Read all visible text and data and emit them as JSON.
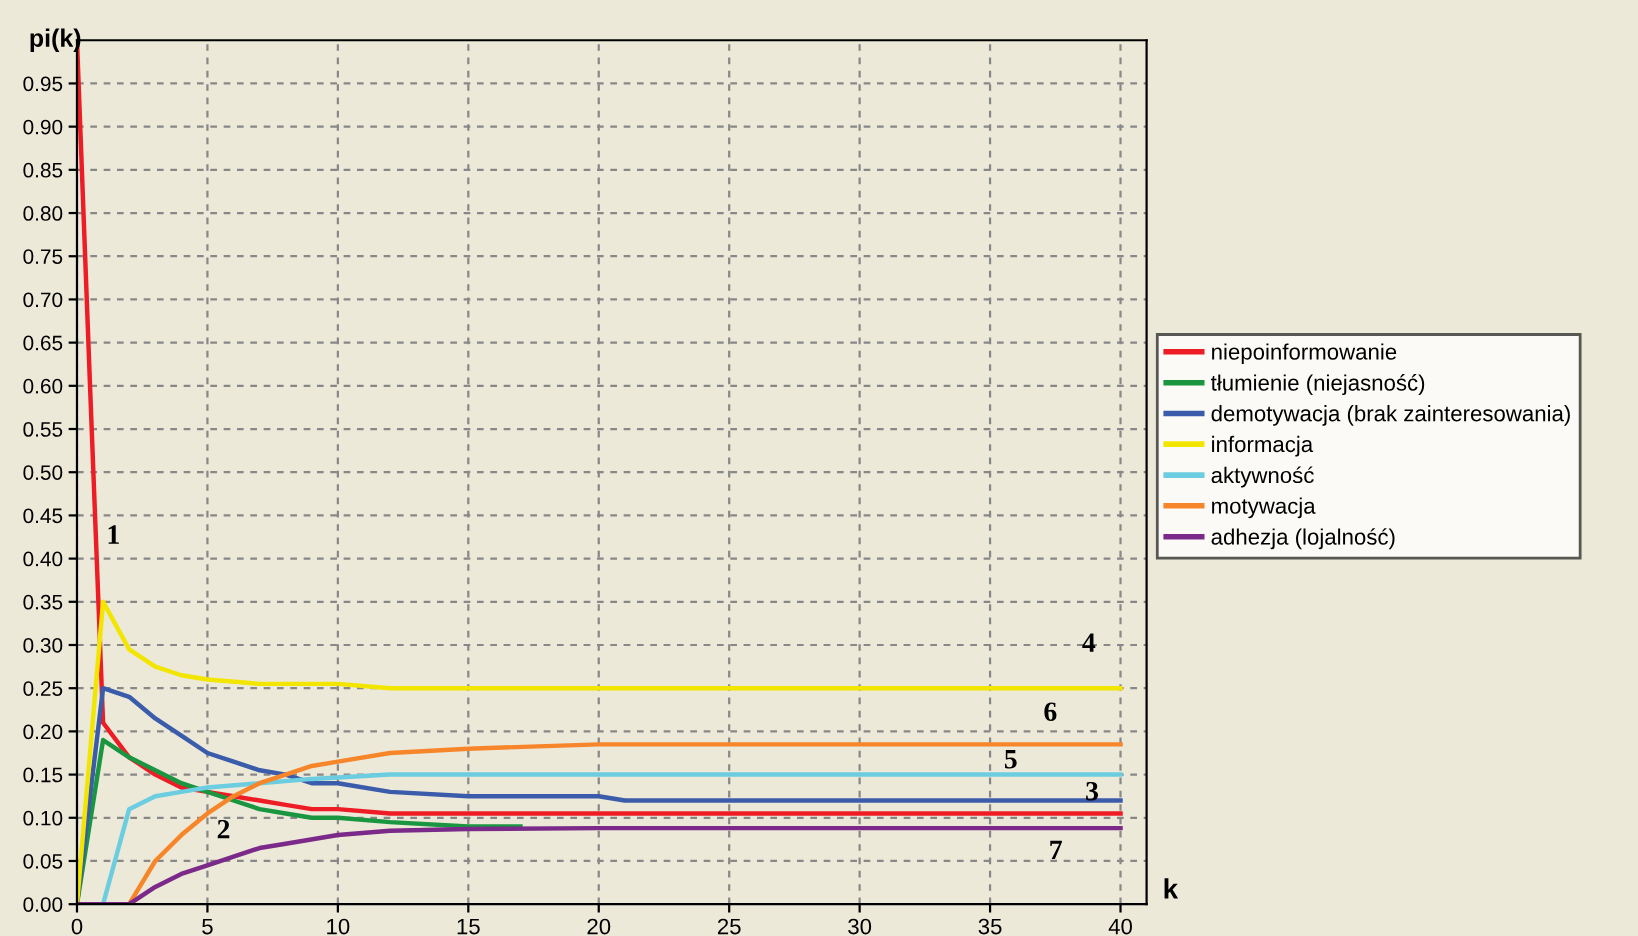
{
  "chart_data": {
    "type": "line",
    "xlabel": "k",
    "ylabel": "pi(k)",
    "xlim": [
      0,
      41
    ],
    "ylim": [
      0,
      1.0
    ],
    "xticks": [
      0,
      5,
      10,
      15,
      20,
      25,
      30,
      35,
      40
    ],
    "yticks": [
      {
        "value": 0,
        "label": "0.00"
      },
      {
        "value": 0.05,
        "label": "0.05"
      },
      {
        "value": 0.1,
        "label": "0.10"
      },
      {
        "value": 0.15,
        "label": "0.15"
      },
      {
        "value": 0.2,
        "label": "0.20"
      },
      {
        "value": 0.25,
        "label": "0.25"
      },
      {
        "value": 0.3,
        "label": "0.30"
      },
      {
        "value": 0.35,
        "label": "0.35"
      },
      {
        "value": 0.4,
        "label": "0.40"
      },
      {
        "value": 0.45,
        "label": "0.45"
      },
      {
        "value": 0.5,
        "label": "0.50"
      },
      {
        "value": 0.55,
        "label": "0.55"
      },
      {
        "value": 0.6,
        "label": "0.60"
      },
      {
        "value": 0.65,
        "label": "0.65"
      },
      {
        "value": 0.7,
        "label": "0.70"
      },
      {
        "value": 0.75,
        "label": "0.75"
      },
      {
        "value": 0.8,
        "label": "0.80"
      },
      {
        "value": 0.85,
        "label": "0.85"
      },
      {
        "value": 0.9,
        "label": "0.90"
      },
      {
        "value": 0.95,
        "label": "0.95"
      }
    ],
    "grid": true,
    "legend": "right",
    "marker": "none",
    "line_style": "solid",
    "series": [
      {
        "name": "niepoinformowanie",
        "color": "#ee1c25",
        "x": [
          0,
          0.5,
          1,
          2,
          3,
          4,
          5,
          6,
          7,
          8,
          9,
          10,
          12,
          15,
          20,
          40
        ],
        "values": [
          1.0,
          0.6,
          0.21,
          0.17,
          0.15,
          0.135,
          0.13,
          0.125,
          0.12,
          0.115,
          0.11,
          0.11,
          0.105,
          0.105,
          0.105,
          0.105
        ]
      },
      {
        "name": "tłumienie (niejasność)",
        "color": "#1a9641",
        "x": [
          0,
          1,
          2,
          3,
          4,
          5,
          6,
          7,
          8,
          9,
          10,
          12,
          15,
          17
        ],
        "values": [
          0,
          0.19,
          0.17,
          0.155,
          0.14,
          0.13,
          0.12,
          0.11,
          0.105,
          0.1,
          0.1,
          0.095,
          0.09,
          0.09
        ]
      },
      {
        "name": "demotywacja (brak zainteresowania)",
        "color": "#3b5bab",
        "x": [
          0,
          1,
          2,
          3,
          4,
          5,
          6,
          7,
          8,
          9,
          10,
          12,
          15,
          20,
          21,
          40
        ],
        "values": [
          0,
          0.25,
          0.24,
          0.215,
          0.195,
          0.175,
          0.165,
          0.155,
          0.15,
          0.14,
          0.14,
          0.13,
          0.125,
          0.125,
          0.12,
          0.12
        ]
      },
      {
        "name": "informacja",
        "color": "#f2e600",
        "x": [
          0,
          1,
          2,
          3,
          4,
          5,
          7,
          10,
          12,
          40
        ],
        "values": [
          0,
          0.35,
          0.295,
          0.275,
          0.265,
          0.26,
          0.255,
          0.255,
          0.25,
          0.25
        ]
      },
      {
        "name": "aktywność",
        "color": "#6ccde0",
        "x": [
          0,
          1,
          2,
          3,
          4,
          5,
          7,
          9,
          12,
          16,
          40
        ],
        "values": [
          0,
          0,
          0.11,
          0.125,
          0.13,
          0.135,
          0.14,
          0.145,
          0.15,
          0.15,
          0.15
        ]
      },
      {
        "name": "motywacja",
        "color": "#f7862a",
        "x": [
          0,
          2,
          3,
          4,
          5,
          6,
          7,
          8,
          9,
          10,
          12,
          15,
          20,
          40
        ],
        "values": [
          0,
          0,
          0.05,
          0.08,
          0.105,
          0.125,
          0.14,
          0.15,
          0.16,
          0.165,
          0.175,
          0.18,
          0.185,
          0.185
        ]
      },
      {
        "name": "adhezja (lojalność)",
        "color": "#7b2a8a",
        "x": [
          0,
          2,
          3,
          4,
          5,
          6,
          7,
          8,
          10,
          12,
          15,
          20,
          40
        ],
        "values": [
          0,
          0,
          0.02,
          0.035,
          0.045,
          0.055,
          0.065,
          0.07,
          0.08,
          0.085,
          0.087,
          0.088,
          0.088
        ]
      }
    ],
    "annotations": [
      "1",
      "2",
      "3",
      "4",
      "5",
      "6",
      "7"
    ]
  }
}
